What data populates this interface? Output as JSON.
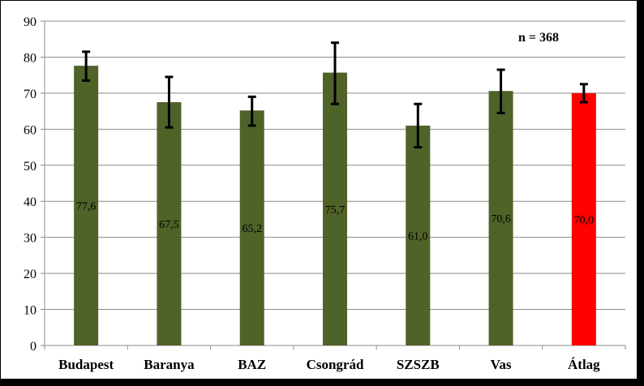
{
  "chart_data": {
    "type": "bar",
    "categories": [
      "Budapest",
      "Baranya",
      "BAZ",
      "Csongrád",
      "SZSZB",
      "Vas",
      "Átlag"
    ],
    "values": [
      77.6,
      67.5,
      65.2,
      75.7,
      61.0,
      70.6,
      70.0
    ],
    "value_labels": [
      "77,6",
      "67,5",
      "65,2",
      "75,7",
      "61,0",
      "70,6",
      "70,0"
    ],
    "error_low": [
      73.5,
      60.5,
      61.0,
      67.0,
      55.0,
      64.5,
      67.5
    ],
    "error_high": [
      81.5,
      74.5,
      69.0,
      84.0,
      67.0,
      76.5,
      72.5
    ],
    "bar_colors": [
      "#4f6228",
      "#4f6228",
      "#4f6228",
      "#4f6228",
      "#4f6228",
      "#4f6228",
      "#ff0000"
    ],
    "annotation": "n = 368",
    "title": "",
    "xlabel": "",
    "ylabel": "",
    "ylim": [
      0,
      90
    ],
    "yticks": [
      0,
      10,
      20,
      30,
      40,
      50,
      60,
      70,
      80,
      90
    ],
    "grid": true,
    "legend": "none"
  }
}
